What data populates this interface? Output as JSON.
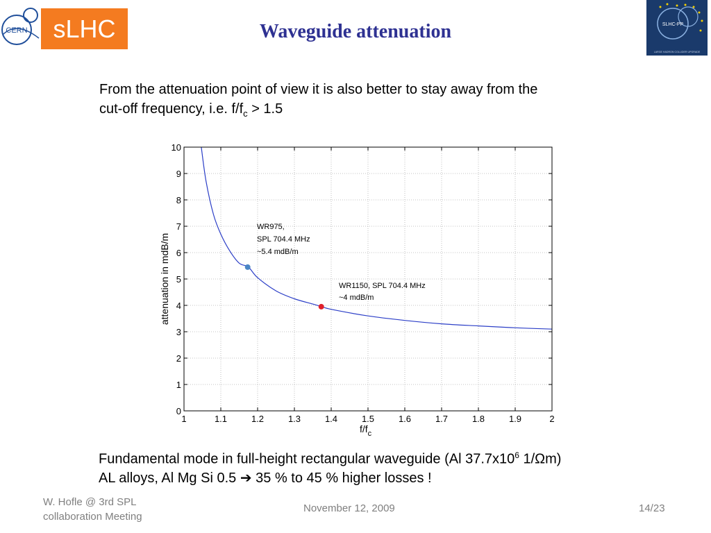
{
  "header": {
    "cern_logo_text": "CERN",
    "slhc_label": "sLHC",
    "title": "Waveguide attenuation",
    "slhcpp_logo_text": "SLHC-PP",
    "slhcpp_logo_subtext": "LARGE HADRON COLLIDER UPGRADE"
  },
  "intro": {
    "line1": "From the attenuation point of view it is also better to stay away from the",
    "line2_prefix": "cut-off frequency, i.e. f/f",
    "line2_sub": "c",
    "line2_suffix": " > 1.5"
  },
  "chart_data": {
    "type": "line",
    "xlabel": "f/f",
    "xlabel_sub": "c",
    "ylabel": "attenuation in mdB/m",
    "xlim": [
      1,
      2
    ],
    "ylim": [
      0,
      10
    ],
    "xticks": [
      "1",
      "1.1",
      "1.2",
      "1.3",
      "1.4",
      "1.5",
      "1.6",
      "1.7",
      "1.8",
      "1.9",
      "2"
    ],
    "yticks": [
      "0",
      "1",
      "2",
      "3",
      "4",
      "5",
      "6",
      "7",
      "8",
      "9",
      "10"
    ],
    "grid": true,
    "line_color": "#2b3ec7",
    "curve": {
      "x": [
        1.047,
        1.06,
        1.08,
        1.1,
        1.125,
        1.15,
        1.175,
        1.2,
        1.25,
        1.3,
        1.35,
        1.375,
        1.4,
        1.5,
        1.6,
        1.7,
        1.8,
        1.9,
        2.0
      ],
      "y": [
        10.0,
        8.7,
        7.45,
        6.7,
        6.05,
        5.6,
        5.45,
        5.05,
        4.55,
        4.25,
        4.05,
        3.95,
        3.85,
        3.6,
        3.43,
        3.3,
        3.22,
        3.15,
        3.1
      ]
    },
    "points": [
      {
        "x": 1.173,
        "y": 5.45,
        "color": "#4a86c5"
      },
      {
        "x": 1.373,
        "y": 3.95,
        "color": "#e0202b"
      }
    ],
    "annotations": [
      {
        "lines": [
          "WR975,",
          "SPL 704.4 MHz",
          "~5.4 mdB/m"
        ]
      },
      {
        "lines": [
          "WR1150, SPL 704.4 MHz",
          "~4 mdB/m"
        ]
      }
    ]
  },
  "caption": {
    "line1_prefix": "Fundamental mode in full-height rectangular waveguide (Al 37.7x10",
    "line1_sup": "6",
    "line1_suffix": " 1/Ωm)",
    "line2_prefix": "AL alloys, Al Mg Si 0.5 ",
    "line2_arrow": "➔",
    "line2_suffix": " 35 % to 45 % higher losses !"
  },
  "footer": {
    "author_line1": "W. Hofle @ 3rd SPL",
    "author_line2": "collaboration Meeting",
    "date": "November 12, 2009",
    "page": "14/23"
  },
  "colors": {
    "slhc_orange": "#f47b20",
    "title_blue": "#2e3192",
    "footer_gray": "#7f7f7f"
  }
}
